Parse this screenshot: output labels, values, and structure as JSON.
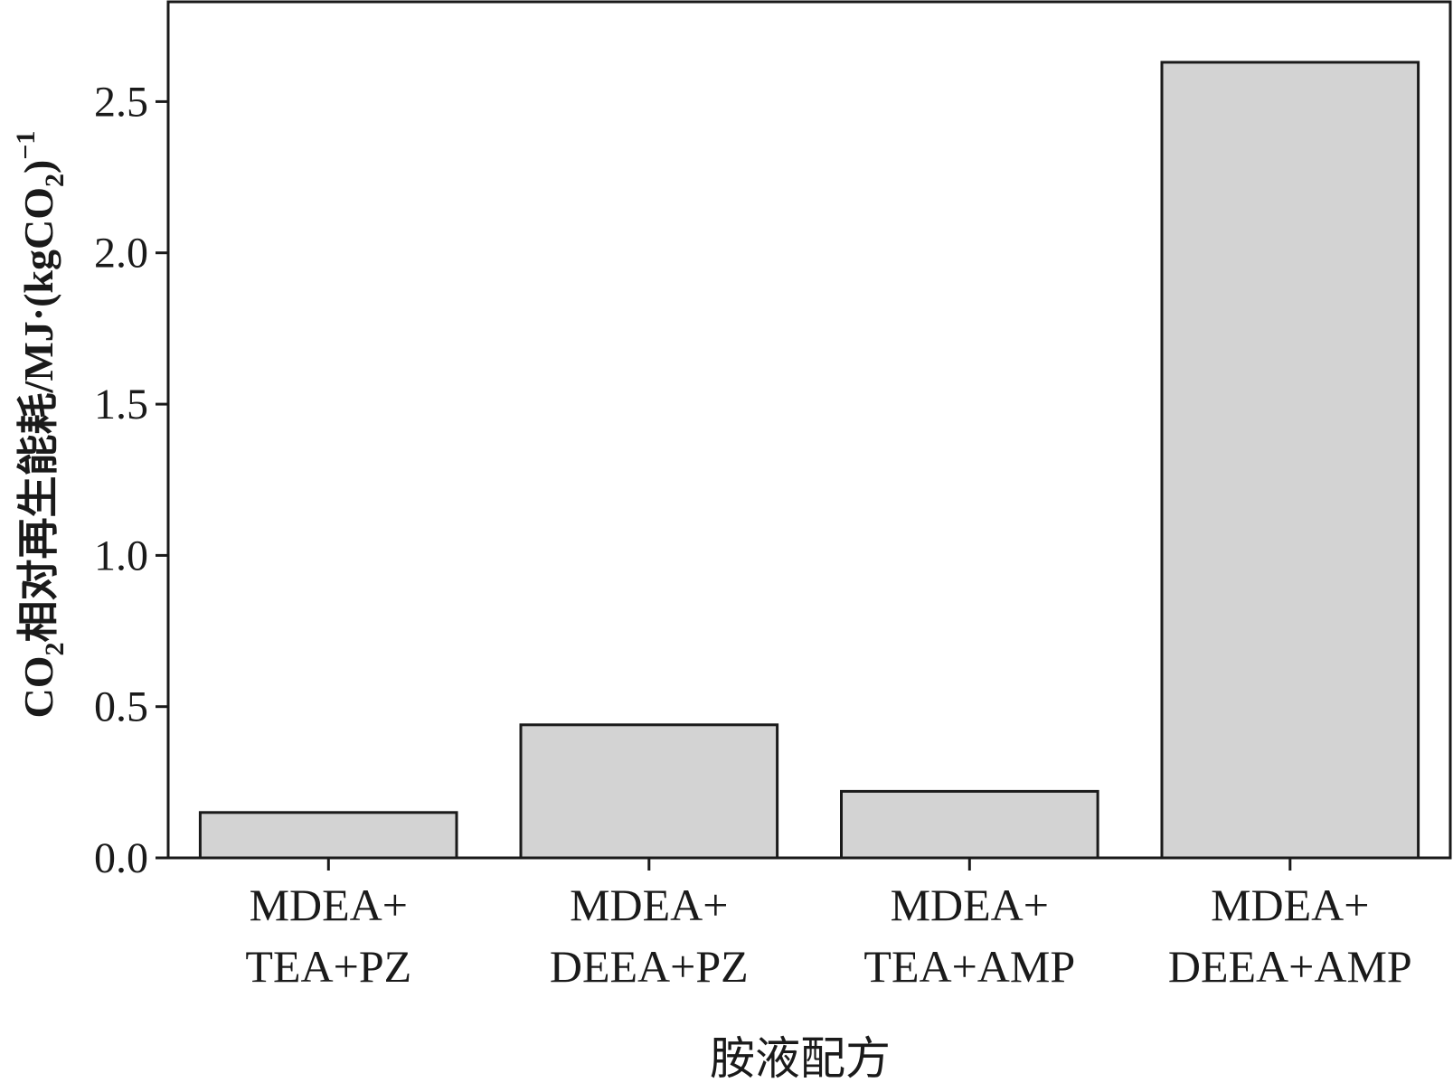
{
  "chart_data": {
    "type": "bar",
    "categories": [
      [
        "MDEA+",
        "TEA+PZ"
      ],
      [
        "MDEA+",
        "DEEA+PZ"
      ],
      [
        "MDEA+",
        "TEA+AMP"
      ],
      [
        "MDEA+",
        "DEEA+AMP"
      ]
    ],
    "values": [
      0.15,
      0.44,
      0.22,
      2.63
    ],
    "title": "",
    "xlabel": "胺液配方",
    "ylabel": {
      "prefix": "CO",
      "sub1": "2",
      "middle": "相对再生能耗/MJ·(kgCO",
      "sub2": "2",
      "suffix": ")",
      "sup": "−1"
    },
    "ylim": [
      0,
      2.83
    ],
    "yticks": [
      "0.0",
      "0.5",
      "1.0",
      "1.5",
      "2.0",
      "2.5"
    ],
    "ytick_values": [
      0,
      0.5,
      1.0,
      1.5,
      2.0,
      2.5
    ],
    "grid": false,
    "legend": "none",
    "colors": {
      "bar_fill": "#d3d3d3",
      "bar_stroke": "#1a1a1a",
      "axis": "#1a1a1a"
    }
  }
}
